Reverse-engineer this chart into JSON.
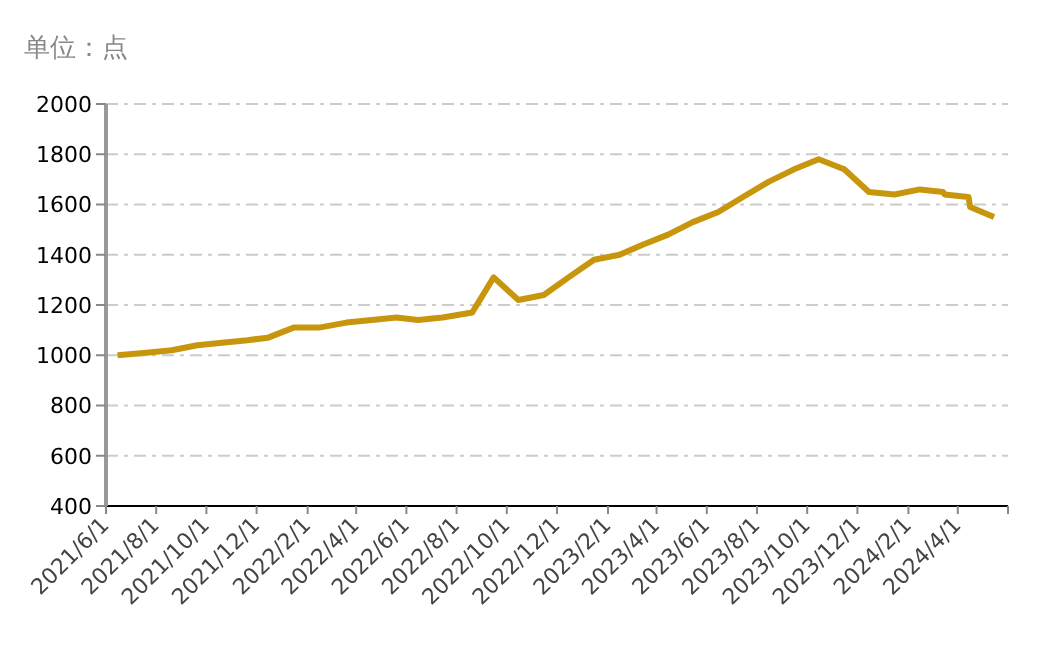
{
  "chart_data": {
    "type": "line",
    "ylabel": "单位：点",
    "x": [
      "2021-06-15",
      "2021-07-20",
      "2021-08-20",
      "2021-09-20",
      "2021-10-20",
      "2021-11-20",
      "2021-12-15",
      "2022-01-15",
      "2022-02-15",
      "2022-03-20",
      "2022-04-20",
      "2022-05-20",
      "2022-06-15",
      "2022-07-15",
      "2022-08-20",
      "2022-09-15",
      "2022-10-15",
      "2022-11-15",
      "2022-12-15",
      "2023-01-15",
      "2023-02-15",
      "2023-03-15",
      "2023-04-15",
      "2023-05-15",
      "2023-06-15",
      "2023-07-15",
      "2023-08-15",
      "2023-09-15",
      "2023-10-15",
      "2023-11-15",
      "2023-12-15",
      "2024-01-15",
      "2024-02-15",
      "2024-03-14",
      "2024-03-16",
      "2024-04-14",
      "2024-04-16",
      "2024-05-15"
    ],
    "series": [
      {
        "color": "#c8960c",
        "values": [
          1000,
          1010,
          1020,
          1040,
          1050,
          1060,
          1070,
          1110,
          1110,
          1130,
          1140,
          1150,
          1140,
          1150,
          1170,
          1310,
          1220,
          1240,
          1310,
          1380,
          1400,
          1440,
          1480,
          1530,
          1570,
          1630,
          1690,
          1740,
          1780,
          1740,
          1650,
          1640,
          1660,
          1650,
          1640,
          1630,
          1590,
          1550
        ]
      }
    ],
    "xlim": [
      "2021-06-01",
      "2024-06-01"
    ],
    "xticks": [
      {
        "value": "2021-06-01",
        "label": "2021/6/1"
      },
      {
        "value": "2021-08-01",
        "label": "2021/8/1"
      },
      {
        "value": "2021-10-01",
        "label": "2021/10/1"
      },
      {
        "value": "2021-12-01",
        "label": "2021/12/1"
      },
      {
        "value": "2022-02-01",
        "label": "2022/2/1"
      },
      {
        "value": "2022-04-01",
        "label": "2022/4/1"
      },
      {
        "value": "2022-06-01",
        "label": "2022/6/1"
      },
      {
        "value": "2022-08-01",
        "label": "2022/8/1"
      },
      {
        "value": "2022-10-01",
        "label": "2022/10/1"
      },
      {
        "value": "2022-12-01",
        "label": "2022/12/1"
      },
      {
        "value": "2023-02-01",
        "label": "2023/2/1"
      },
      {
        "value": "2023-04-01",
        "label": "2023/4/1"
      },
      {
        "value": "2023-06-01",
        "label": "2023/6/1"
      },
      {
        "value": "2023-08-01",
        "label": "2023/8/1"
      },
      {
        "value": "2023-10-01",
        "label": "2023/10/1"
      },
      {
        "value": "2023-12-01",
        "label": "2023/12/1"
      },
      {
        "value": "2024-02-01",
        "label": "2024/2/1"
      },
      {
        "value": "2024-04-01",
        "label": "2024/4/1"
      },
      {
        "value": "2024-06-01",
        "label": null
      }
    ],
    "ylim": [
      400,
      2000
    ],
    "yticks": [
      400,
      600,
      800,
      1000,
      1200,
      1400,
      1600,
      1800,
      2000
    ],
    "grid": "y",
    "marker": "none",
    "line_style": "solid",
    "legend": false
  }
}
